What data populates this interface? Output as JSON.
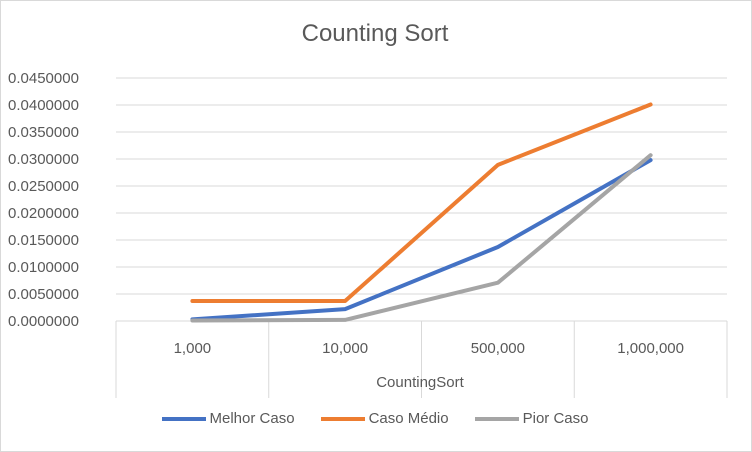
{
  "chart_data": {
    "type": "line",
    "title": "Counting Sort",
    "xlabel": "CountingSort",
    "ylabel": "",
    "categories": [
      "1,000",
      "10,000",
      "500,000",
      "1,000,000"
    ],
    "ylim": [
      0,
      0.045
    ],
    "yticks": [
      "0.0000000",
      "0.0050000",
      "0.0100000",
      "0.0150000",
      "0.0200000",
      "0.0250000",
      "0.0300000",
      "0.0350000",
      "0.0400000",
      "0.0450000"
    ],
    "grid": true,
    "legend_position": "bottom",
    "series": [
      {
        "name": "Melhor Caso",
        "color": "#4472c4",
        "values": [
          0.0003,
          0.0022,
          0.0137,
          0.0298
        ]
      },
      {
        "name": "Caso Médio",
        "color": "#ed7d31",
        "values": [
          0.0037,
          0.0037,
          0.0289,
          0.0401
        ]
      },
      {
        "name": "Pior Caso",
        "color": "#a5a5a5",
        "values": [
          0.0001,
          0.0002,
          0.0071,
          0.0307
        ]
      }
    ]
  }
}
